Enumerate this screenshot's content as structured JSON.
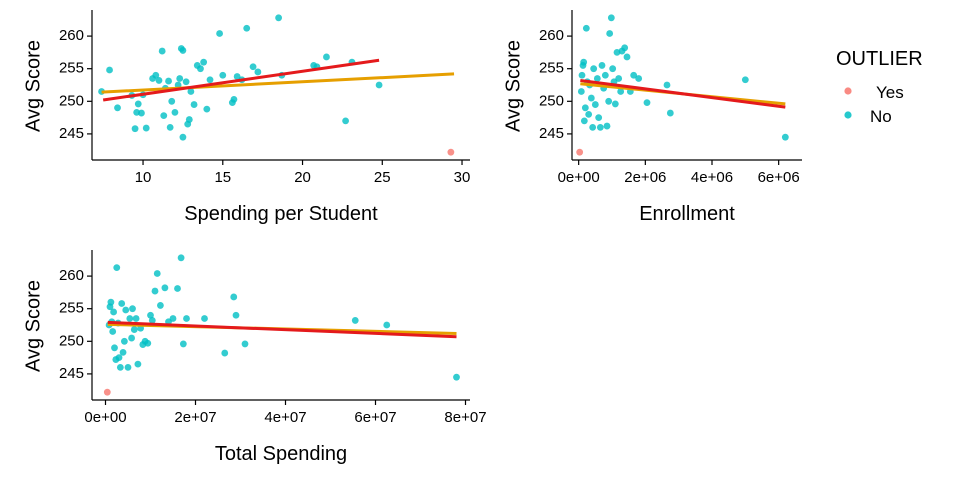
{
  "chart_data": [
    {
      "type": "scatter",
      "xlabel": "Spending per Student",
      "ylabel": "Avg Score",
      "xlim": [
        6.8,
        30.5
      ],
      "ylim": [
        241,
        264
      ],
      "xticks": [
        10,
        15,
        20,
        25,
        30
      ],
      "xtick_labels": [
        "10",
        "15",
        "20",
        "25",
        "30"
      ],
      "yticks": [
        245,
        250,
        255,
        260
      ],
      "ytick_labels": [
        "245",
        "250",
        "255",
        "260"
      ],
      "points_no": [
        [
          7.4,
          251.5
        ],
        [
          7.9,
          254.8
        ],
        [
          8.4,
          249.0
        ],
        [
          9.3,
          250.9
        ],
        [
          9.5,
          245.8
        ],
        [
          9.6,
          248.3
        ],
        [
          9.7,
          249.6
        ],
        [
          9.9,
          248.2
        ],
        [
          10.0,
          251.0
        ],
        [
          10.2,
          245.9
        ],
        [
          10.6,
          253.5
        ],
        [
          10.8,
          254.0
        ],
        [
          11.0,
          253.2
        ],
        [
          11.2,
          257.7
        ],
        [
          11.3,
          247.8
        ],
        [
          11.4,
          252.0
        ],
        [
          11.6,
          253.1
        ],
        [
          11.7,
          246.0
        ],
        [
          11.8,
          250.0
        ],
        [
          12.0,
          248.3
        ],
        [
          12.2,
          252.5
        ],
        [
          12.3,
          253.5
        ],
        [
          12.4,
          258.1
        ],
        [
          12.5,
          257.8
        ],
        [
          12.5,
          244.5
        ],
        [
          12.7,
          253.0
        ],
        [
          12.8,
          246.5
        ],
        [
          12.9,
          247.2
        ],
        [
          13.0,
          251.5
        ],
        [
          13.2,
          249.5
        ],
        [
          13.4,
          255.5
        ],
        [
          13.6,
          255.0
        ],
        [
          13.8,
          256.0
        ],
        [
          14.0,
          248.8
        ],
        [
          14.2,
          253.3
        ],
        [
          14.8,
          260.4
        ],
        [
          15.0,
          254.0
        ],
        [
          15.6,
          249.8
        ],
        [
          15.7,
          250.3
        ],
        [
          15.9,
          253.8
        ],
        [
          16.2,
          253.3
        ],
        [
          16.5,
          261.2
        ],
        [
          16.9,
          255.3
        ],
        [
          17.2,
          254.5
        ],
        [
          18.5,
          262.8
        ],
        [
          18.7,
          254.0
        ],
        [
          20.7,
          255.5
        ],
        [
          20.9,
          255.3
        ],
        [
          21.5,
          256.8
        ],
        [
          22.7,
          247.0
        ],
        [
          23.1,
          256.0
        ],
        [
          24.8,
          252.5
        ]
      ],
      "points_yes": [
        [
          29.3,
          242.2
        ]
      ],
      "fit_all": {
        "x": [
          7.4,
          29.5
        ],
        "y": [
          251.4,
          254.2
        ]
      },
      "fit_no_outlier": {
        "x": [
          7.5,
          24.8
        ],
        "y": [
          250.2,
          256.3
        ]
      }
    },
    {
      "type": "scatter",
      "xlabel": "Enrollment",
      "ylabel": "Avg Score",
      "xlim": [
        -200000,
        6700000
      ],
      "ylim": [
        241,
        264
      ],
      "xticks": [
        0,
        2000000,
        4000000,
        6000000
      ],
      "xtick_labels": [
        "0e+00",
        "2e+06",
        "4e+06",
        "6e+06"
      ],
      "yticks": [
        245,
        250,
        255,
        260
      ],
      "ytick_labels": [
        "245",
        "250",
        "255",
        "260"
      ],
      "points_no": [
        [
          80000,
          251.5
        ],
        [
          100000,
          254.0
        ],
        [
          130000,
          255.5
        ],
        [
          150000,
          256.0
        ],
        [
          170000,
          247.0
        ],
        [
          200000,
          249.0
        ],
        [
          230000,
          261.2
        ],
        [
          260000,
          253.0
        ],
        [
          300000,
          248.0
        ],
        [
          330000,
          252.5
        ],
        [
          380000,
          250.5
        ],
        [
          420000,
          246.0
        ],
        [
          450000,
          255.0
        ],
        [
          500000,
          249.5
        ],
        [
          560000,
          253.5
        ],
        [
          600000,
          247.5
        ],
        [
          650000,
          246.0
        ],
        [
          700000,
          255.5
        ],
        [
          750000,
          252.0
        ],
        [
          800000,
          254.0
        ],
        [
          850000,
          246.2
        ],
        [
          900000,
          250.0
        ],
        [
          930000,
          260.4
        ],
        [
          980000,
          262.8
        ],
        [
          1020000,
          255.0
        ],
        [
          1060000,
          253.0
        ],
        [
          1100000,
          249.6
        ],
        [
          1150000,
          257.5
        ],
        [
          1200000,
          253.5
        ],
        [
          1260000,
          251.5
        ],
        [
          1300000,
          257.7
        ],
        [
          1380000,
          258.2
        ],
        [
          1450000,
          256.8
        ],
        [
          1550000,
          251.5
        ],
        [
          1650000,
          254.0
        ],
        [
          1800000,
          253.5
        ],
        [
          2050000,
          249.8
        ],
        [
          2650000,
          252.5
        ],
        [
          2750000,
          248.2
        ],
        [
          5000000,
          253.3
        ],
        [
          6200000,
          244.5
        ]
      ],
      "points_yes": [
        [
          30000,
          242.2
        ]
      ],
      "fit_all": {
        "x": [
          50000,
          6200000
        ],
        "y": [
          252.7,
          249.6
        ]
      },
      "fit_no_outlier": {
        "x": [
          50000,
          6200000
        ],
        "y": [
          253.2,
          249.1
        ]
      }
    },
    {
      "type": "scatter",
      "xlabel": "Total Spending",
      "ylabel": "Avg Score",
      "xlim": [
        -3000000,
        81000000
      ],
      "ylim": [
        241,
        264
      ],
      "xticks": [
        0,
        20000000,
        40000000,
        60000000,
        80000000
      ],
      "xtick_labels": [
        "0e+00",
        "2e+07",
        "4e+07",
        "6e+07",
        "8e+07"
      ],
      "yticks": [
        245,
        250,
        255,
        260
      ],
      "ytick_labels": [
        "245",
        "250",
        "255",
        "260"
      ],
      "points_no": [
        [
          800000,
          252.5
        ],
        [
          1000000,
          255.3
        ],
        [
          1200000,
          256.0
        ],
        [
          1400000,
          253.0
        ],
        [
          1600000,
          251.5
        ],
        [
          1800000,
          254.5
        ],
        [
          2000000,
          249.0
        ],
        [
          2300000,
          247.2
        ],
        [
          2500000,
          261.3
        ],
        [
          2800000,
          252.8
        ],
        [
          3000000,
          247.5
        ],
        [
          3300000,
          246.0
        ],
        [
          3600000,
          255.8
        ],
        [
          3900000,
          248.3
        ],
        [
          4200000,
          250.0
        ],
        [
          4500000,
          254.8
        ],
        [
          5000000,
          246.0
        ],
        [
          5400000,
          253.5
        ],
        [
          5800000,
          250.5
        ],
        [
          6000000,
          255.0
        ],
        [
          6400000,
          251.8
        ],
        [
          6800000,
          253.5
        ],
        [
          7200000,
          246.5
        ],
        [
          7800000,
          252.0
        ],
        [
          8300000,
          249.5
        ],
        [
          8800000,
          250.0
        ],
        [
          9400000,
          249.7
        ],
        [
          10000000,
          254.0
        ],
        [
          10400000,
          253.2
        ],
        [
          11000000,
          257.7
        ],
        [
          11500000,
          260.4
        ],
        [
          12200000,
          255.5
        ],
        [
          13200000,
          258.2
        ],
        [
          14000000,
          253.0
        ],
        [
          15000000,
          253.5
        ],
        [
          16000000,
          258.1
        ],
        [
          16800000,
          262.8
        ],
        [
          17300000,
          249.6
        ],
        [
          18000000,
          253.5
        ],
        [
          22000000,
          253.5
        ],
        [
          26500000,
          248.2
        ],
        [
          28500000,
          256.8
        ],
        [
          29000000,
          254.0
        ],
        [
          31000000,
          249.6
        ],
        [
          55500000,
          253.2
        ],
        [
          62500000,
          252.5
        ],
        [
          78000000,
          244.5
        ]
      ],
      "points_yes": [
        [
          400000,
          242.2
        ]
      ],
      "fit_all": {
        "x": [
          500000,
          78000000
        ],
        "y": [
          252.6,
          251.2
        ]
      },
      "fit_no_outlier": {
        "x": [
          500000,
          78000000
        ],
        "y": [
          252.9,
          250.7
        ]
      }
    }
  ],
  "legend": {
    "title": "OUTLIER",
    "items": [
      {
        "label": "Yes",
        "color": "#F8766D"
      },
      {
        "label": "No",
        "color": "#00BFC4"
      }
    ]
  },
  "colors": {
    "fit_all": "#E69F00",
    "fit_no_outlier": "#E41A1C",
    "outlier_yes": "#F8766D",
    "outlier_no": "#00BFC4"
  }
}
